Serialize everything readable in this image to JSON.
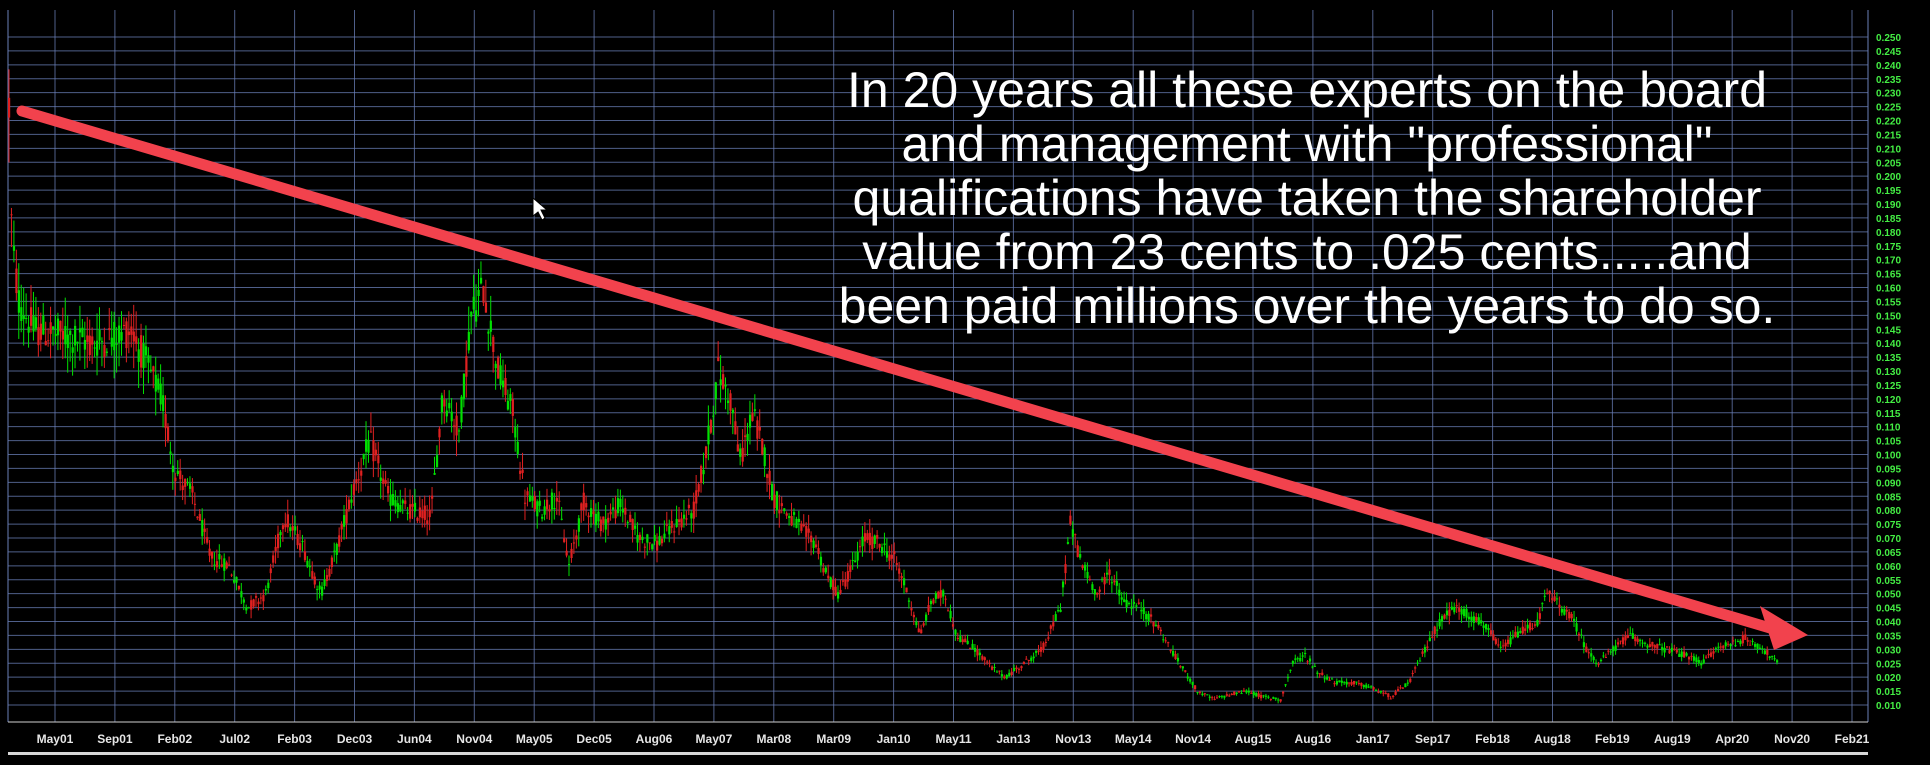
{
  "chart_data": {
    "type": "candlestick",
    "title": "",
    "xlabel": "",
    "ylabel": "",
    "ylim": [
      0.005,
      0.252
    ],
    "grid": true,
    "colors": {
      "background": "#000000",
      "grid": "#6a7fb8",
      "up": "#00e000",
      "down": "#e02020",
      "tick_y": "#44ee44",
      "tick_x": "#e6e6e6",
      "arrow": "#f2424d",
      "annotation": "#ffffff",
      "cursor": "#ffffff"
    },
    "x_ticks": [
      "May01",
      "Sep01",
      "Feb02",
      "Jul02",
      "Feb03",
      "Dec03",
      "Jun04",
      "Nov04",
      "May05",
      "Dec05",
      "Aug06",
      "May07",
      "Mar08",
      "Mar09",
      "Jan10",
      "May11",
      "Jan13",
      "Nov13",
      "May14",
      "Nov14",
      "Aug15",
      "Aug16",
      "Jan17",
      "Sep17",
      "Feb18",
      "Aug18",
      "Feb19",
      "Aug19",
      "Apr20",
      "Nov20",
      "Feb21"
    ],
    "y_ticks": [
      "0.250",
      "0.245",
      "0.240",
      "0.235",
      "0.230",
      "0.225",
      "0.220",
      "0.215",
      "0.210",
      "0.205",
      "0.200",
      "0.195",
      "0.190",
      "0.185",
      "0.180",
      "0.175",
      "0.170",
      "0.165",
      "0.160",
      "0.155",
      "0.150",
      "0.145",
      "0.140",
      "0.135",
      "0.130",
      "0.125",
      "0.120",
      "0.115",
      "0.110",
      "0.105",
      "0.100",
      "0.095",
      "0.090",
      "0.085",
      "0.080",
      "0.075",
      "0.070",
      "0.065",
      "0.060",
      "0.055",
      "0.050",
      "0.045",
      "0.040",
      "0.035",
      "0.030",
      "0.025",
      "0.020",
      "0.015",
      "0.010"
    ],
    "series": [
      {
        "anchors": [
          [
            0,
            0.225
          ],
          [
            1,
            0.19
          ],
          [
            4,
            0.17
          ],
          [
            8,
            0.155
          ],
          [
            20,
            0.145
          ],
          [
            40,
            0.143
          ],
          [
            70,
            0.14
          ],
          [
            100,
            0.145
          ],
          [
            110,
            0.135
          ],
          [
            125,
            0.12
          ],
          [
            135,
            0.095
          ],
          [
            150,
            0.085
          ],
          [
            165,
            0.063
          ],
          [
            180,
            0.06
          ],
          [
            195,
            0.045
          ],
          [
            210,
            0.05
          ],
          [
            225,
            0.078
          ],
          [
            240,
            0.067
          ],
          [
            255,
            0.05
          ],
          [
            268,
            0.066
          ],
          [
            280,
            0.085
          ],
          [
            295,
            0.105
          ],
          [
            310,
            0.085
          ],
          [
            325,
            0.08
          ],
          [
            345,
            0.078
          ],
          [
            355,
            0.122
          ],
          [
            368,
            0.108
          ],
          [
            378,
            0.15
          ],
          [
            388,
            0.16
          ],
          [
            400,
            0.13
          ],
          [
            412,
            0.115
          ],
          [
            422,
            0.085
          ],
          [
            435,
            0.08
          ],
          [
            448,
            0.085
          ],
          [
            458,
            0.06
          ],
          [
            470,
            0.083
          ],
          [
            485,
            0.075
          ],
          [
            500,
            0.082
          ],
          [
            515,
            0.07
          ],
          [
            530,
            0.068
          ],
          [
            545,
            0.075
          ],
          [
            560,
            0.08
          ],
          [
            570,
            0.1
          ],
          [
            580,
            0.13
          ],
          [
            590,
            0.12
          ],
          [
            598,
            0.098
          ],
          [
            608,
            0.115
          ],
          [
            618,
            0.1
          ],
          [
            625,
            0.085
          ],
          [
            638,
            0.078
          ],
          [
            650,
            0.072
          ],
          [
            660,
            0.068
          ],
          [
            668,
            0.057
          ],
          [
            678,
            0.05
          ],
          [
            690,
            0.06
          ],
          [
            700,
            0.07
          ],
          [
            712,
            0.068
          ],
          [
            725,
            0.062
          ],
          [
            735,
            0.05
          ],
          [
            745,
            0.035
          ],
          [
            755,
            0.048
          ],
          [
            765,
            0.05
          ],
          [
            775,
            0.035
          ],
          [
            790,
            0.03
          ],
          [
            805,
            0.023
          ],
          [
            815,
            0.02
          ],
          [
            830,
            0.025
          ],
          [
            845,
            0.03
          ],
          [
            860,
            0.045
          ],
          [
            868,
            0.075
          ],
          [
            878,
            0.06
          ],
          [
            890,
            0.05
          ],
          [
            900,
            0.058
          ],
          [
            912,
            0.047
          ],
          [
            925,
            0.045
          ],
          [
            940,
            0.038
          ],
          [
            950,
            0.03
          ],
          [
            960,
            0.023
          ],
          [
            972,
            0.015
          ],
          [
            985,
            0.012
          ],
          [
            1000,
            0.014
          ],
          [
            1012,
            0.015
          ],
          [
            1025,
            0.013
          ],
          [
            1040,
            0.012
          ],
          [
            1050,
            0.025
          ],
          [
            1060,
            0.028
          ],
          [
            1070,
            0.022
          ],
          [
            1085,
            0.018
          ],
          [
            1100,
            0.018
          ],
          [
            1115,
            0.016
          ],
          [
            1130,
            0.013
          ],
          [
            1145,
            0.018
          ],
          [
            1158,
            0.03
          ],
          [
            1170,
            0.04
          ],
          [
            1182,
            0.045
          ],
          [
            1195,
            0.042
          ],
          [
            1208,
            0.038
          ],
          [
            1220,
            0.03
          ],
          [
            1235,
            0.036
          ],
          [
            1250,
            0.04
          ],
          [
            1258,
            0.05
          ],
          [
            1268,
            0.046
          ],
          [
            1280,
            0.04
          ],
          [
            1290,
            0.03
          ],
          [
            1300,
            0.025
          ],
          [
            1312,
            0.03
          ],
          [
            1325,
            0.035
          ],
          [
            1340,
            0.032
          ],
          [
            1355,
            0.03
          ],
          [
            1370,
            0.028
          ],
          [
            1385,
            0.025
          ],
          [
            1395,
            0.03
          ],
          [
            1408,
            0.032
          ],
          [
            1420,
            0.034
          ],
          [
            1435,
            0.03
          ],
          [
            1446,
            0.025
          ]
        ]
      }
    ]
  },
  "annotation": {
    "lines": [
      "In 20 years all these experts on the board",
      "and management with \"professional\"",
      "qualifications have taken the shareholder",
      "value from 23 cents to .025 cents.....and",
      "been paid millions over the years to do so."
    ]
  }
}
